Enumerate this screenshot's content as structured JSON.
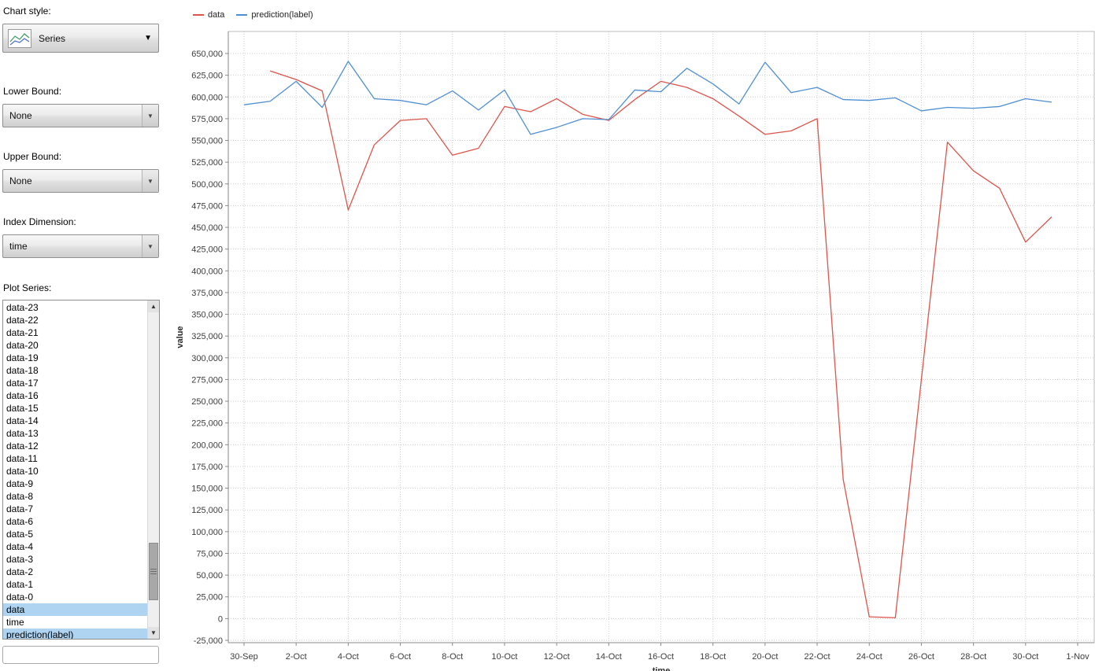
{
  "sidebar": {
    "chart_style_label": "Chart style:",
    "chart_style_value": "Series",
    "lower_bound_label": "Lower Bound:",
    "lower_bound_value": "None",
    "upper_bound_label": "Upper Bound:",
    "upper_bound_value": "None",
    "index_dimension_label": "Index Dimension:",
    "index_dimension_value": "time",
    "plot_series_label": "Plot Series:",
    "plot_series_items": [
      "data-23",
      "data-22",
      "data-21",
      "data-20",
      "data-19",
      "data-18",
      "data-17",
      "data-16",
      "data-15",
      "data-14",
      "data-13",
      "data-12",
      "data-11",
      "data-10",
      "data-9",
      "data-8",
      "data-7",
      "data-6",
      "data-5",
      "data-4",
      "data-3",
      "data-2",
      "data-1",
      "data-0",
      "data",
      "time",
      "prediction(label)"
    ],
    "plot_series_selected": [
      "data",
      "prediction(label)"
    ],
    "filter_input_value": ""
  },
  "glyphs": {
    "dropdown_arrow": "▼",
    "scroll_up_arrow": "▲",
    "scroll_down_arrow": "▼"
  },
  "colors": {
    "data_series": "#dd544b",
    "prediction_series": "#4e8fd3",
    "list_selection": "#aed4f2"
  },
  "chart_data": {
    "type": "line",
    "title": "",
    "xlabel": "time",
    "ylabel": "value",
    "ylim": [
      -25000,
      650000
    ],
    "y_tick_step": 25000,
    "grid": true,
    "legend_position": "top-left",
    "x_tick_labels": [
      "30-Sep",
      "2-Oct",
      "4-Oct",
      "6-Oct",
      "8-Oct",
      "10-Oct",
      "12-Oct",
      "14-Oct",
      "16-Oct",
      "18-Oct",
      "20-Oct",
      "22-Oct",
      "24-Oct",
      "26-Oct",
      "28-Oct",
      "30-Oct",
      "1-Nov"
    ],
    "x_tick_days": [
      0,
      2,
      4,
      6,
      8,
      10,
      12,
      14,
      16,
      18,
      20,
      22,
      24,
      26,
      28,
      30,
      32
    ],
    "series": [
      {
        "name": "data",
        "color": "#dd544b",
        "start_day": 1,
        "values": [
          630000,
          620000,
          607000,
          470000,
          545000,
          573000,
          575000,
          533000,
          541000,
          589000,
          583000,
          598000,
          580000,
          573000,
          597000,
          618000,
          611000,
          598000,
          578000,
          557000,
          561000,
          575000,
          160000,
          2000,
          1000,
          275000,
          548000,
          515000,
          495000,
          433000,
          462000
        ]
      },
      {
        "name": "prediction(label)",
        "color": "#4e8fd3",
        "start_day": 0,
        "values": [
          591000,
          595000,
          618000,
          588000,
          641000,
          598000,
          596000,
          591000,
          607000,
          585000,
          608000,
          557000,
          565000,
          575000,
          574000,
          608000,
          606000,
          633000,
          615000,
          592000,
          640000,
          605000,
          611000,
          597000,
          596000,
          599000,
          584000,
          588000,
          587000,
          589000,
          598000,
          594000
        ]
      }
    ]
  }
}
